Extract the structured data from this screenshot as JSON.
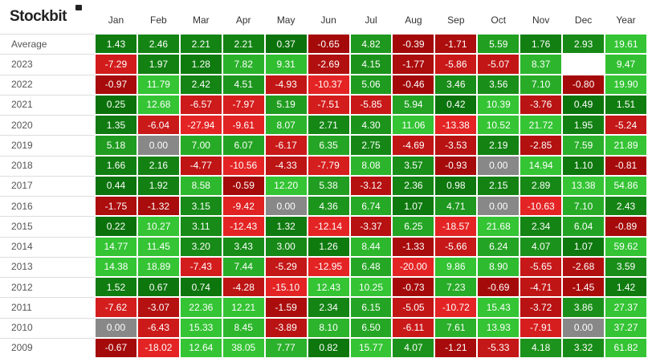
{
  "header": {
    "brand": "Stockbit"
  },
  "table": {
    "columns": [
      "Jan",
      "Feb",
      "Mar",
      "Apr",
      "May",
      "Jun",
      "Jul",
      "Aug",
      "Sep",
      "Oct",
      "Nov",
      "Dec",
      "Year"
    ],
    "rows": [
      {
        "label": "Average",
        "cells": [
          "1.43",
          "2.46",
          "2.21",
          "2.21",
          "0.37",
          "-0.65",
          "4.82",
          "-0.39",
          "-1.71",
          "5.59",
          "1.76",
          "2.93",
          "19.61"
        ]
      },
      {
        "label": "2023",
        "cells": [
          "-7.29",
          "1.97",
          "1.28",
          "7.82",
          "9.31",
          "-2.69",
          "4.15",
          "-1.77",
          "-5.86",
          "-5.07",
          "8.37",
          null,
          "9.47"
        ]
      },
      {
        "label": "2022",
        "cells": [
          "-0.97",
          "11.79",
          "2.42",
          "4.51",
          "-4.93",
          "-10.37",
          "5.06",
          "-0.46",
          "3.46",
          "3.56",
          "7.10",
          "-0.80",
          "19.90"
        ]
      },
      {
        "label": "2021",
        "cells": [
          "0.25",
          "12.68",
          "-6.57",
          "-7.97",
          "5.19",
          "-7.51",
          "-5.85",
          "5.94",
          "0.42",
          "10.39",
          "-3.76",
          "0.49",
          "1.51"
        ]
      },
      {
        "label": "2020",
        "cells": [
          "1.35",
          "-6.04",
          "-27.94",
          "-9.61",
          "8.07",
          "2.71",
          "4.30",
          "11.06",
          "-13.38",
          "10.52",
          "21.72",
          "1.95",
          "-5.24"
        ]
      },
      {
        "label": "2019",
        "cells": [
          "5.18",
          "0.00",
          "7.00",
          "6.07",
          "-6.17",
          "6.35",
          "2.75",
          "-4.69",
          "-3.53",
          "2.19",
          "-2.85",
          "7.59",
          "21.89"
        ]
      },
      {
        "label": "2018",
        "cells": [
          "1.66",
          "2.16",
          "-4.77",
          "-10.56",
          "-4.33",
          "-7.79",
          "8.08",
          "3.57",
          "-0.93",
          "0.00",
          "14.94",
          "1.10",
          "-0.81"
        ]
      },
      {
        "label": "2017",
        "cells": [
          "0.44",
          "1.92",
          "8.58",
          "-0.59",
          "12.20",
          "5.38",
          "-3.12",
          "2.36",
          "0.98",
          "2.15",
          "2.89",
          "13.38",
          "54.86"
        ]
      },
      {
        "label": "2016",
        "cells": [
          "-1.75",
          "-1.32",
          "3.15",
          "-9.42",
          "0.00",
          "4.36",
          "6.74",
          "1.07",
          "4.71",
          "0.00",
          "-10.63",
          "7.10",
          "2.43"
        ]
      },
      {
        "label": "2015",
        "cells": [
          "0.22",
          "10.27",
          "3.11",
          "-12.43",
          "1.32",
          "-12.14",
          "-3.37",
          "6.25",
          "-18.57",
          "21.68",
          "2.34",
          "6.04",
          "-0.89"
        ]
      },
      {
        "label": "2014",
        "cells": [
          "14.77",
          "11.45",
          "3.20",
          "3.43",
          "3.00",
          "1.26",
          "8.44",
          "-1.33",
          "-5.66",
          "6.24",
          "4.07",
          "1.07",
          "59.62"
        ]
      },
      {
        "label": "2013",
        "cells": [
          "14.38",
          "18.89",
          "-7.43",
          "7.44",
          "-5.29",
          "-12.95",
          "6.48",
          "-20.00",
          "9.86",
          "8.90",
          "-5.65",
          "-2.68",
          "3.59"
        ]
      },
      {
        "label": "2012",
        "cells": [
          "1.52",
          "0.67",
          "0.74",
          "-4.28",
          "-15.10",
          "12.43",
          "10.25",
          "-0.73",
          "7.23",
          "-0.69",
          "-4.71",
          "-1.45",
          "1.42"
        ]
      },
      {
        "label": "2011",
        "cells": [
          "-7.62",
          "-3.07",
          "22.36",
          "12.21",
          "-1.59",
          "2.34",
          "6.15",
          "-5.05",
          "-10.72",
          "15.43",
          "-3.72",
          "3.86",
          "27.37"
        ]
      },
      {
        "label": "2010",
        "cells": [
          "0.00",
          "-6.43",
          "15.33",
          "8.45",
          "-3.89",
          "8.10",
          "6.50",
          "-6.11",
          "7.61",
          "13.93",
          "-7.91",
          "0.00",
          "37.27"
        ]
      },
      {
        "label": "2009",
        "cells": [
          "-0.67",
          "-18.02",
          "12.64",
          "38.05",
          "7.77",
          "0.82",
          "15.77",
          "4.07",
          "-1.21",
          "-5.33",
          "4.18",
          "3.32",
          "61.82"
        ]
      }
    ]
  }
}
